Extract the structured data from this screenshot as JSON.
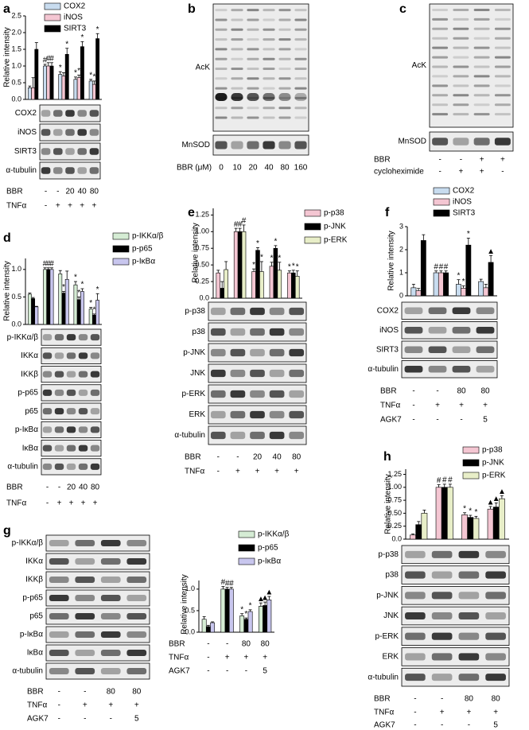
{
  "chart_data": [
    {
      "type": "bar",
      "y_label": "Relative intensity",
      "categories": [
        null,
        null,
        null,
        null,
        null
      ],
      "ylim": [
        0,
        2.5
      ],
      "yticks": [
        {
          "value": 0,
          "label": "0.0"
        },
        {
          "value": 0.5,
          "label": "0.5"
        },
        {
          "value": 1,
          "label": "1.0"
        },
        {
          "value": 1.5,
          "label": "1.5"
        },
        {
          "value": 2,
          "label": "2.0"
        },
        {
          "value": 2.5,
          "label": "2.5"
        }
      ],
      "series": [
        {
          "name": "COX2",
          "color": "#c8dcef",
          "values": [
            0.35,
            1.0,
            0.75,
            0.6,
            0.55
          ],
          "errors": [
            0.05,
            0.05,
            0.08,
            0.07,
            0.05
          ],
          "marks": [
            null,
            "#",
            "*",
            "*",
            "*"
          ]
        },
        {
          "name": "iNOS",
          "color": "#f4c6d2",
          "values": [
            0.35,
            1.0,
            0.7,
            0.65,
            0.45
          ],
          "errors": [
            0.3,
            0.1,
            0.1,
            0.08,
            0.1
          ],
          "marks": [
            null,
            "#",
            null,
            "*",
            "*"
          ]
        },
        {
          "name": "SIRT3",
          "color": "#000000",
          "values": [
            1.5,
            1.0,
            1.35,
            1.58,
            1.82
          ],
          "errors": [
            0.2,
            0.1,
            0.18,
            0.15,
            0.15
          ],
          "marks": [
            null,
            "#",
            "*",
            "*",
            "*"
          ]
        }
      ]
    },
    {
      "type": "bar",
      "y_label": "Relative intensity",
      "categories": [
        null,
        null,
        null,
        null,
        null
      ],
      "ylim": [
        0,
        1.2
      ],
      "yticks": [
        {
          "value": 0,
          "label": "0.0"
        },
        {
          "value": 0.5,
          "label": "0.5"
        },
        {
          "value": 1,
          "label": "1.0"
        }
      ],
      "series": [
        {
          "name": "p-IKKα/β",
          "color": "#d5ecd4",
          "values": [
            0.55,
            1.0,
            0.92,
            0.72,
            0.28
          ],
          "errors": [
            0.02,
            0.03,
            0.06,
            0.06,
            0.03
          ],
          "marks": [
            null,
            "#",
            null,
            "*",
            "*"
          ]
        },
        {
          "name": "p-p65",
          "color": "#000000",
          "values": [
            0.47,
            1.0,
            0.57,
            0.45,
            0.17
          ],
          "errors": [
            0.02,
            0.03,
            0.03,
            0.05,
            0.02
          ],
          "marks": [
            null,
            "#",
            "*",
            "*",
            "*"
          ]
        },
        {
          "name": "p-IκBα",
          "color": "#c8c6ee",
          "values": [
            0.32,
            1.0,
            0.82,
            0.6,
            0.44
          ],
          "errors": [
            0.01,
            0.03,
            0.15,
            0.05,
            0.12
          ],
          "marks": [
            null,
            "#",
            null,
            "*",
            "*"
          ]
        }
      ]
    },
    {
      "type": "bar",
      "y_label": "Relative intensity",
      "categories": [
        null,
        null,
        null,
        null,
        null
      ],
      "ylim": [
        0,
        1.35
      ],
      "yticks": [
        {
          "value": 0,
          "label": "0.0"
        },
        0.25,
        {
          "value": 0.5,
          "label": "0.50"
        },
        0.75,
        {
          "value": 1,
          "label": "1.00"
        },
        1.25
      ],
      "series": [
        {
          "name": "p-p38",
          "color": "#f4c6d2",
          "values": [
            0.38,
            1.0,
            0.4,
            0.48,
            0.38
          ],
          "errors": [
            0.04,
            0.05,
            0.04,
            0.06,
            0.03
          ],
          "marks": [
            null,
            "#",
            "*",
            "*",
            "*"
          ]
        },
        {
          "name": "p-JNK",
          "color": "#000000",
          "values": [
            0.15,
            1.0,
            0.72,
            0.75,
            0.38
          ],
          "errors": [
            0.1,
            0.05,
            0.04,
            0.04,
            0.04
          ],
          "marks": [
            null,
            "#",
            "*",
            "*",
            "*"
          ]
        },
        {
          "name": "p-ERK",
          "color": "#e8eec8",
          "values": [
            0.43,
            1.0,
            0.4,
            0.42,
            0.33
          ],
          "errors": [
            0.12,
            0.1,
            0.15,
            0.12,
            0.08
          ],
          "marks": [
            null,
            "#",
            "*",
            "*",
            "*"
          ]
        }
      ]
    },
    {
      "type": "bar",
      "y_label": "Relative intensity",
      "categories": [
        null,
        null,
        null,
        null
      ],
      "ylim": [
        0,
        3
      ],
      "yticks": [
        0,
        1,
        2,
        3
      ],
      "series": [
        {
          "name": "COX2",
          "color": "#c8dcef",
          "values": [
            0.35,
            1.0,
            0.5,
            0.62
          ],
          "errors": [
            0.15,
            0.08,
            0.2,
            0.1
          ],
          "marks": [
            null,
            "#",
            "*",
            null
          ]
        },
        {
          "name": "iNOS",
          "color": "#f4c6d2",
          "values": [
            0.22,
            1.0,
            0.33,
            0.35
          ],
          "errors": [
            0.1,
            0.08,
            0.1,
            0.15
          ],
          "marks": [
            null,
            "#",
            "*",
            null
          ]
        },
        {
          "name": "SIRT3",
          "color": "#000000",
          "values": [
            2.4,
            1.0,
            2.2,
            1.45
          ],
          "errors": [
            0.25,
            0.08,
            0.3,
            0.3
          ],
          "marks": [
            null,
            "#",
            "*",
            "▲"
          ]
        }
      ]
    },
    {
      "type": "bar",
      "y_label": "Relative intensity",
      "categories": [
        null,
        null,
        null,
        null
      ],
      "ylim": [
        0,
        1.2
      ],
      "yticks": [
        {
          "value": 0,
          "label": "0.0"
        },
        {
          "value": 0.5,
          "label": "0.5"
        },
        {
          "value": 1,
          "label": "1.0"
        }
      ],
      "series": [
        {
          "name": "p-IKKα/β",
          "color": "#d5ecd4",
          "values": [
            0.3,
            1.0,
            0.38,
            0.6
          ],
          "errors": [
            0.06,
            0.06,
            0.05,
            0.08
          ],
          "marks": [
            null,
            "#",
            "*",
            "▲"
          ]
        },
        {
          "name": "p-p65",
          "color": "#000000",
          "values": [
            0.13,
            1.0,
            0.3,
            0.62
          ],
          "errors": [
            0.03,
            0.04,
            0.03,
            0.08
          ],
          "marks": [
            null,
            "#",
            "*",
            "▲"
          ]
        },
        {
          "name": "p-IκBα",
          "color": "#c8c6ee",
          "values": [
            0.22,
            1.0,
            0.48,
            0.75
          ],
          "errors": [
            0.02,
            0.04,
            0.04,
            0.08
          ],
          "marks": [
            null,
            "#",
            "*",
            "▲"
          ]
        }
      ],
      "conditions": [
        {
          "name": "BBR",
          "values": [
            "-",
            "-",
            "80",
            "80"
          ]
        },
        {
          "name": "TNFα",
          "values": [
            "-",
            "+",
            "+",
            "+"
          ]
        },
        {
          "name": "AGK7",
          "values": [
            "-",
            "-",
            "-",
            "5"
          ]
        }
      ]
    },
    {
      "type": "bar",
      "y_label": "Relative intensity",
      "categories": [
        null,
        null,
        null,
        null
      ],
      "ylim": [
        0,
        1.35
      ],
      "yticks": [
        {
          "value": 0,
          "label": "0.0"
        },
        0.25,
        {
          "value": 0.5,
          "label": "0.50"
        },
        0.75,
        {
          "value": 1,
          "label": "1.00"
        },
        1.25
      ],
      "series": [
        {
          "name": "p-p38",
          "color": "#f4c6d2",
          "values": [
            0.08,
            1.0,
            0.47,
            0.58
          ],
          "errors": [
            0.02,
            0.05,
            0.04,
            0.05
          ],
          "marks": [
            null,
            "#",
            "*",
            "▲"
          ]
        },
        {
          "name": "p-JNK",
          "color": "#000000",
          "values": [
            0.28,
            1.0,
            0.42,
            0.62
          ],
          "errors": [
            0.06,
            0.06,
            0.04,
            0.08
          ],
          "marks": [
            null,
            "#",
            "*",
            "▲"
          ]
        },
        {
          "name": "p-ERK",
          "color": "#e8eec8",
          "values": [
            0.5,
            1.0,
            0.4,
            0.78
          ],
          "errors": [
            0.06,
            0.06,
            0.04,
            0.06
          ],
          "marks": [
            null,
            "#",
            "*",
            "▲"
          ]
        }
      ]
    }
  ],
  "blots": [
    {
      "label": "a",
      "rows": [
        "COX2",
        "iNOS",
        "SIRT3",
        "α-tubulin"
      ],
      "conditions": [
        {
          "name": "BBR",
          "values": [
            "-",
            "-",
            "20",
            "40",
            "80"
          ]
        },
        {
          "name": "TNFα",
          "values": [
            "-",
            "+",
            "+",
            "+",
            "+"
          ]
        }
      ]
    },
    {
      "label": "b",
      "rows": [
        "AcK",
        "MnSOD"
      ],
      "conditions": [
        {
          "name": "BBR (μM)",
          "values": [
            "0",
            "10",
            "20",
            "40",
            "80",
            "160"
          ]
        }
      ]
    },
    {
      "label": "c",
      "rows": [
        "AcK",
        "MnSOD"
      ],
      "conditions": [
        {
          "name": "BBR",
          "values": [
            "-",
            "-",
            "+",
            "+"
          ]
        },
        {
          "name": "cycloheximide",
          "values": [
            "-",
            "+",
            "+",
            "-"
          ]
        }
      ]
    },
    {
      "label": "d",
      "rows": [
        "p-IKKα/β",
        "IKKα",
        "IKKβ",
        "p-p65",
        "p65",
        "p-IκBα",
        "IκBα",
        "α-tubulin"
      ],
      "conditions": [
        {
          "name": "BBR",
          "values": [
            "-",
            "-",
            "20",
            "40",
            "80"
          ]
        },
        {
          "name": "TNFα",
          "values": [
            "-",
            "+",
            "+",
            "+",
            "+"
          ]
        }
      ]
    },
    {
      "label": "e",
      "rows": [
        "p-p38",
        "p38",
        "p-JNK",
        "JNK",
        "p-ERK",
        "ERK",
        "α-tubulin"
      ],
      "conditions": [
        {
          "name": "BBR",
          "values": [
            "-",
            "-",
            "20",
            "40",
            "80"
          ]
        },
        {
          "name": "TNFα",
          "values": [
            "-",
            "+",
            "+",
            "+",
            "+"
          ]
        }
      ]
    },
    {
      "label": "f",
      "rows": [
        "COX2",
        "iNOS",
        "SIRT3",
        "α-tubulin"
      ],
      "conditions": [
        {
          "name": "BBR",
          "values": [
            "-",
            "-",
            "80",
            "80"
          ]
        },
        {
          "name": "TNFα",
          "values": [
            "-",
            "+",
            "+",
            "+"
          ]
        },
        {
          "name": "AGK7",
          "values": [
            "-",
            "-",
            "-",
            "5"
          ]
        }
      ]
    },
    {
      "label": "g",
      "rows": [
        "p-IKKα/β",
        "IKKα",
        "IKKβ",
        "p-p65",
        "p65",
        "p-IκBα",
        "IκBα",
        "α-tubulin"
      ],
      "conditions": [
        {
          "name": "BBR",
          "values": [
            "-",
            "-",
            "80",
            "80"
          ]
        },
        {
          "name": "TNFα",
          "values": [
            "-",
            "+",
            "+",
            "+"
          ]
        },
        {
          "name": "AGK7",
          "values": [
            "-",
            "-",
            "-",
            "5"
          ]
        }
      ]
    },
    {
      "label": "h",
      "rows": [
        "p-p38",
        "p38",
        "p-JNK",
        "JNK",
        "p-ERK",
        "ERK",
        "α-tubulin"
      ],
      "conditions": [
        {
          "name": "BBR",
          "values": [
            "-",
            "-",
            "80",
            "80"
          ]
        },
        {
          "name": "TNFα",
          "values": [
            "-",
            "+",
            "+",
            "+"
          ]
        },
        {
          "name": "AGK7",
          "values": [
            "-",
            "-",
            "-",
            "5"
          ]
        }
      ]
    }
  ]
}
